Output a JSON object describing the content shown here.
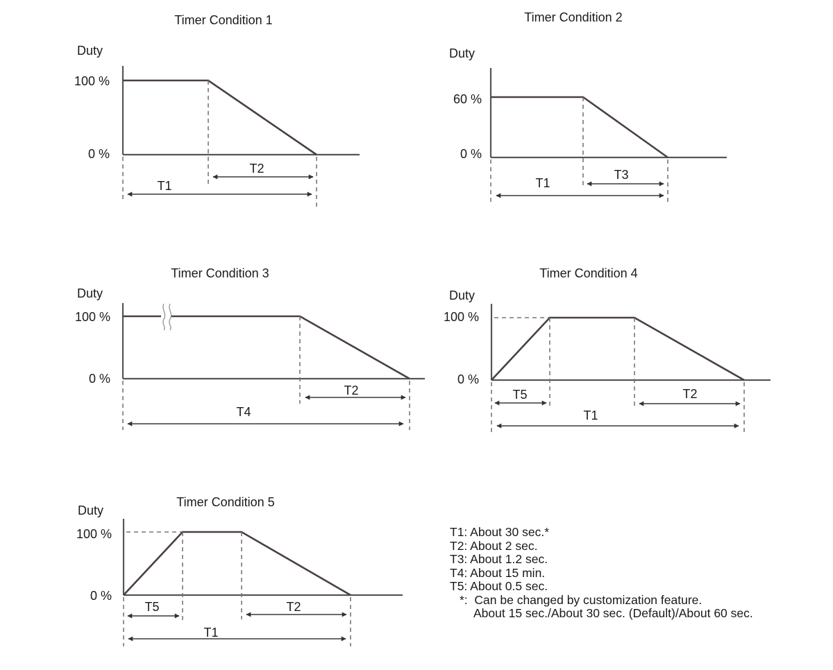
{
  "panels": [
    {
      "title": "Timer Condition 1",
      "ylabel": "Duty",
      "ymax_label": "100 %",
      "ymin_label": "0 %",
      "spans": [
        "T2",
        "T1"
      ]
    },
    {
      "title": "Timer Condition 2",
      "ylabel": "Duty",
      "ymax_label": "60 %",
      "ymin_label": "0 %",
      "spans": [
        "T1",
        "T3"
      ]
    },
    {
      "title": "Timer Condition 3",
      "ylabel": "Duty",
      "ymax_label": "100 %",
      "ymin_label": "0 %",
      "spans": [
        "T2",
        "T4"
      ]
    },
    {
      "title": "Timer Condition 4",
      "ylabel": "Duty",
      "ymax_label": "100 %",
      "ymin_label": "0 %",
      "spans": [
        "T5",
        "T2",
        "T1"
      ]
    },
    {
      "title": "Timer Condition 5",
      "ylabel": "Duty",
      "ymax_label": "100 %",
      "ymin_label": "0 %",
      "spans": [
        "T5",
        "T2",
        "T1"
      ]
    }
  ],
  "legend": {
    "t1": "T1: About 30 sec.*",
    "t2": "T2: About 2 sec.",
    "t3": "T3: About 1.2 sec.",
    "t4": "T4: About 15 min.",
    "t5": "T5: About 0.5 sec.",
    "note": "*:  Can be changed by customization feature.",
    "note2": "About 15 sec./About 30 sec. (Default)/About 60 sec."
  }
}
